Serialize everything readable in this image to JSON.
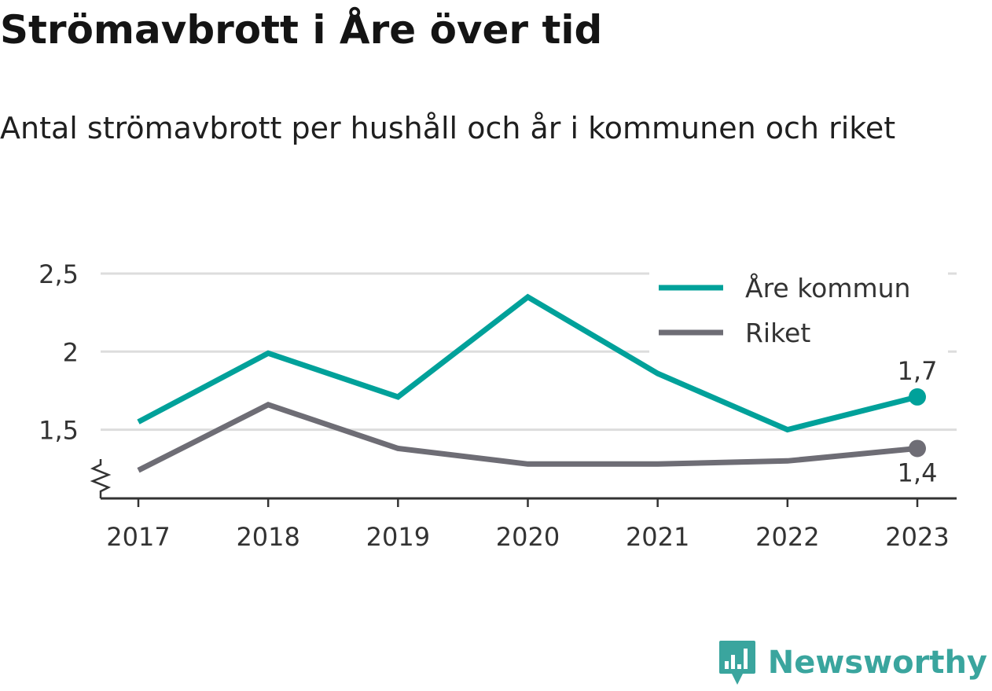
{
  "header": {
    "title": "Strömavbrott i Åre över tid",
    "subtitle": "Antal strömavbrott per hushåll och år i kommunen och riket"
  },
  "brand": {
    "name": "Newsworthy",
    "icon": "newsworthy-bar-chart-icon",
    "color": "#3aa59e"
  },
  "colors": {
    "kommun": "#00a19a",
    "riket": "#6e6d75",
    "grid": "#dddddd",
    "axis": "#333333"
  },
  "chart_data": {
    "type": "line",
    "title": "Strömavbrott i Åre över tid",
    "subtitle": "Antal strömavbrott per hushåll och år i kommunen och riket",
    "xlabel": "",
    "ylabel": "",
    "x": [
      "2017",
      "2018",
      "2019",
      "2020",
      "2021",
      "2022",
      "2023"
    ],
    "ylim": [
      1.06,
      2.5
    ],
    "y_ticks": [
      {
        "value": 1.5,
        "label": "1,5"
      },
      {
        "value": 2,
        "label": "2"
      },
      {
        "value": 2.5,
        "label": "2,5"
      }
    ],
    "y_axis_break": true,
    "grid": true,
    "legend_position": "top-right",
    "series": [
      {
        "name": "Åre kommun",
        "color": "#00a19a",
        "values": [
          1.55,
          1.99,
          1.71,
          2.35,
          1.86,
          1.5,
          1.71
        ],
        "end_label": "1,7",
        "end_label_position": "above"
      },
      {
        "name": "Riket",
        "color": "#6e6d75",
        "values": [
          1.24,
          1.66,
          1.38,
          1.28,
          1.28,
          1.3,
          1.38
        ],
        "end_label": "1,4",
        "end_label_position": "below"
      }
    ]
  }
}
